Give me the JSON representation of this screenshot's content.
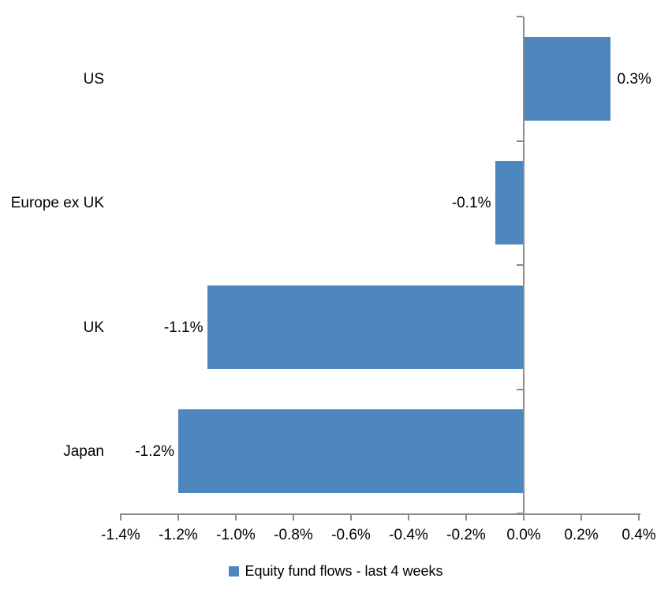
{
  "chart_data": {
    "type": "bar",
    "orientation": "horizontal",
    "title": "",
    "xlabel": "",
    "ylabel": "",
    "categories": [
      "US",
      "Europe ex UK",
      "UK",
      "Japan"
    ],
    "series": [
      {
        "name": "Equity fund flows - last 4 weeks",
        "values": [
          0.3,
          -0.1,
          -1.1,
          -1.2
        ],
        "value_labels": [
          "0.3%",
          "-0.1%",
          "-1.1%",
          "-1.2%"
        ]
      }
    ],
    "xlim": [
      -1.4,
      0.4
    ],
    "x_tick_values": [
      -1.4,
      -1.2,
      -1.0,
      -0.8,
      -0.6,
      -0.4,
      -0.2,
      0.0,
      0.2,
      0.4
    ],
    "x_tick_labels": [
      "-1.4%",
      "-1.2%",
      "-1.0%",
      "-0.8%",
      "-0.6%",
      "-0.4%",
      "-0.2%",
      "0.0%",
      "0.2%",
      "0.4%"
    ],
    "grid": false,
    "legend_position": "bottom",
    "data_label_position": "outside-end",
    "colors": {
      "bar": "#4E87BE",
      "axis": "#8C8C8C",
      "text": "#000000",
      "background": "#FFFFFF"
    }
  },
  "legend": {
    "label": "Equity fund flows - last 4 weeks",
    "marker_color": "#4E87BE"
  }
}
